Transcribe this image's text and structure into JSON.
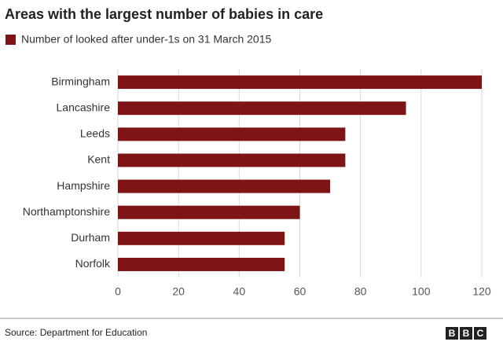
{
  "chart_data": {
    "type": "bar",
    "orientation": "horizontal",
    "title": "Areas with the largest number of babies in care",
    "categories": [
      "Birmingham",
      "Lancashire",
      "Leeds",
      "Kent",
      "Hampshire",
      "Northamptonshire",
      "Durham",
      "Norfolk"
    ],
    "series": [
      {
        "name": "Number of looked after under-1s on 31 March 2015",
        "color": "#7f1416",
        "values": [
          120,
          95,
          75,
          75,
          70,
          60,
          55,
          55
        ]
      }
    ],
    "xlim": [
      0,
      120
    ],
    "xticks": [
      0,
      20,
      40,
      60,
      80,
      100,
      120
    ],
    "grid": true
  },
  "footer": {
    "source": "Source: Department for Education",
    "logo": [
      "B",
      "B",
      "C"
    ]
  }
}
